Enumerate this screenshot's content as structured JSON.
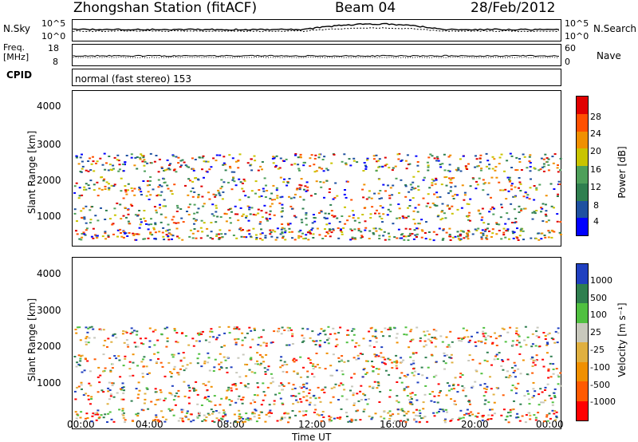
{
  "header": {
    "title": "Zhongshan Station (fitACF)",
    "beam": "Beam 04",
    "date": "28/Feb/2012"
  },
  "top_panel": {
    "left_label": "N.Sky",
    "right_label": "N.Search",
    "left_ticks": [
      "10^5",
      "10^0"
    ],
    "right_ticks": [
      "10^5",
      "10^0"
    ]
  },
  "freq_panel": {
    "left_label_line1": "Freq.",
    "left_label_line2": "[MHz]",
    "right_label": "Nave",
    "left_ticks": [
      "18",
      "8"
    ],
    "right_ticks": [
      "60",
      "0"
    ]
  },
  "cpid_panel": {
    "label": "CPID",
    "text": "normal (fast stereo) 153"
  },
  "axes": {
    "ylabel": "Slant Range [km]",
    "xlabel": "Time UT",
    "x_ticks": [
      "00:00",
      "04:00",
      "08:00",
      "12:00",
      "16:00",
      "20:00",
      "00:00"
    ],
    "y_ticks": [
      "4000",
      "3000",
      "2000",
      "1000"
    ]
  },
  "power_scale": {
    "label": "Power [dB]",
    "ticks": [
      "28",
      "24",
      "20",
      "16",
      "12",
      "8",
      "4"
    ],
    "colors": [
      "#0000ff",
      "#1e50a0",
      "#2f7f4f",
      "#4ea05a",
      "#c9c400",
      "#f09000",
      "#ff5000",
      "#e00000"
    ]
  },
  "velocity_scale": {
    "label": "Velocity [m s⁻¹]",
    "ticks": [
      "1000",
      "500",
      "100",
      "25",
      "-25",
      "-100",
      "-500",
      "-1000"
    ],
    "colors": [
      "#2040c0",
      "#2f7f4f",
      "#50c040",
      "#c8c8bc",
      "#e0b040",
      "#f09000",
      "#ff5a00",
      "#ff0000"
    ]
  },
  "chart_data": [
    {
      "type": "heatmap",
      "title": "Power [dB]",
      "xlabel": "Time UT",
      "ylabel": "Slant Range [km]",
      "xlim": [
        0,
        24
      ],
      "ylim": [
        180,
        4500
      ],
      "colorbar_range": [
        0,
        30
      ],
      "colorbar_ticks": [
        4,
        8,
        12,
        16,
        20,
        24,
        28
      ]
    },
    {
      "type": "heatmap",
      "title": "Velocity [m s⁻¹]",
      "xlabel": "Time UT",
      "ylabel": "Slant Range [km]",
      "xlim": [
        0,
        24
      ],
      "ylim": [
        180,
        4500
      ],
      "colorbar_ticks": [
        1000,
        500,
        100,
        25,
        -25,
        -100,
        -500,
        -1000
      ]
    }
  ]
}
